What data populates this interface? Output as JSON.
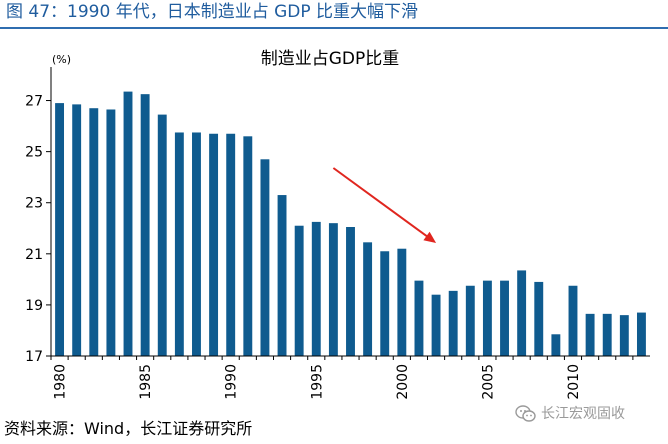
{
  "figure_title": "图 47：1990 年代，日本制造业占 GDP 比重大幅下滑",
  "source": "资料来源：Wind，长江证券研究所",
  "watermark": "长江宏观固收",
  "colors": {
    "bar": "#0f5b8f",
    "arrow": "#e0261f",
    "title": "#1f5c9e",
    "rule": "#2f6db0"
  },
  "chart_data": {
    "type": "bar",
    "title": "制造业占GDP比重",
    "unit_label": "(%)",
    "x": [
      1980,
      1981,
      1982,
      1983,
      1984,
      1985,
      1986,
      1987,
      1988,
      1989,
      1990,
      1991,
      1992,
      1993,
      1994,
      1995,
      1996,
      1997,
      1998,
      1999,
      2000,
      2001,
      2002,
      2003,
      2004,
      2005,
      2006,
      2007,
      2008,
      2009,
      2010,
      2011,
      2012,
      2013,
      2014
    ],
    "values": [
      26.9,
      26.85,
      26.7,
      26.65,
      27.35,
      27.25,
      26.45,
      25.75,
      25.75,
      25.7,
      25.7,
      25.6,
      24.7,
      23.3,
      22.1,
      22.25,
      22.2,
      22.05,
      21.45,
      21.1,
      21.2,
      19.95,
      19.4,
      19.55,
      19.75,
      19.95,
      19.95,
      20.35,
      19.9,
      17.85,
      19.75,
      18.65,
      18.65,
      18.6,
      18.7
    ],
    "x_tick_labels": [
      "1980",
      "1985",
      "1990",
      "1995",
      "2000",
      "2005",
      "2010"
    ],
    "y_ticks": [
      17,
      19,
      21,
      23,
      25,
      27
    ],
    "ylim": [
      17,
      28
    ],
    "annotation": "downward-arrow from 1996 to 2002",
    "grid": false,
    "legend": "none"
  }
}
